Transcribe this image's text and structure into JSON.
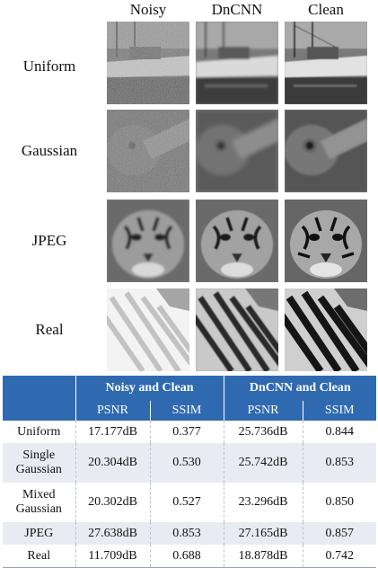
{
  "columns": [
    "Noisy",
    "DnCNN",
    "Clean"
  ],
  "rows": [
    "Uniform",
    "Gaussian",
    "JPEG",
    "Real"
  ],
  "table": {
    "group_headers": [
      "Noisy and Clean",
      "DnCNN and Clean"
    ],
    "metric_headers": [
      "PSNR",
      "SSIM",
      "PSNR",
      "SSIM"
    ],
    "rows": [
      {
        "label": "Uniform",
        "values": [
          "17.177dB",
          "0.377",
          "25.736dB",
          "0.844"
        ]
      },
      {
        "label": "Single Gaussian",
        "values": [
          "20.304dB",
          "0.530",
          "25.742dB",
          "0.853"
        ]
      },
      {
        "label": "Mixed Gaussian",
        "values": [
          "20.302dB",
          "0.527",
          "23.296dB",
          "0.850"
        ]
      },
      {
        "label": "JPEG",
        "values": [
          "27.638dB",
          "0.853",
          "27.165dB",
          "0.857"
        ]
      },
      {
        "label": "Real",
        "values": [
          "11.709dB",
          "0.688",
          "18.878dB",
          "0.742"
        ]
      }
    ]
  }
}
